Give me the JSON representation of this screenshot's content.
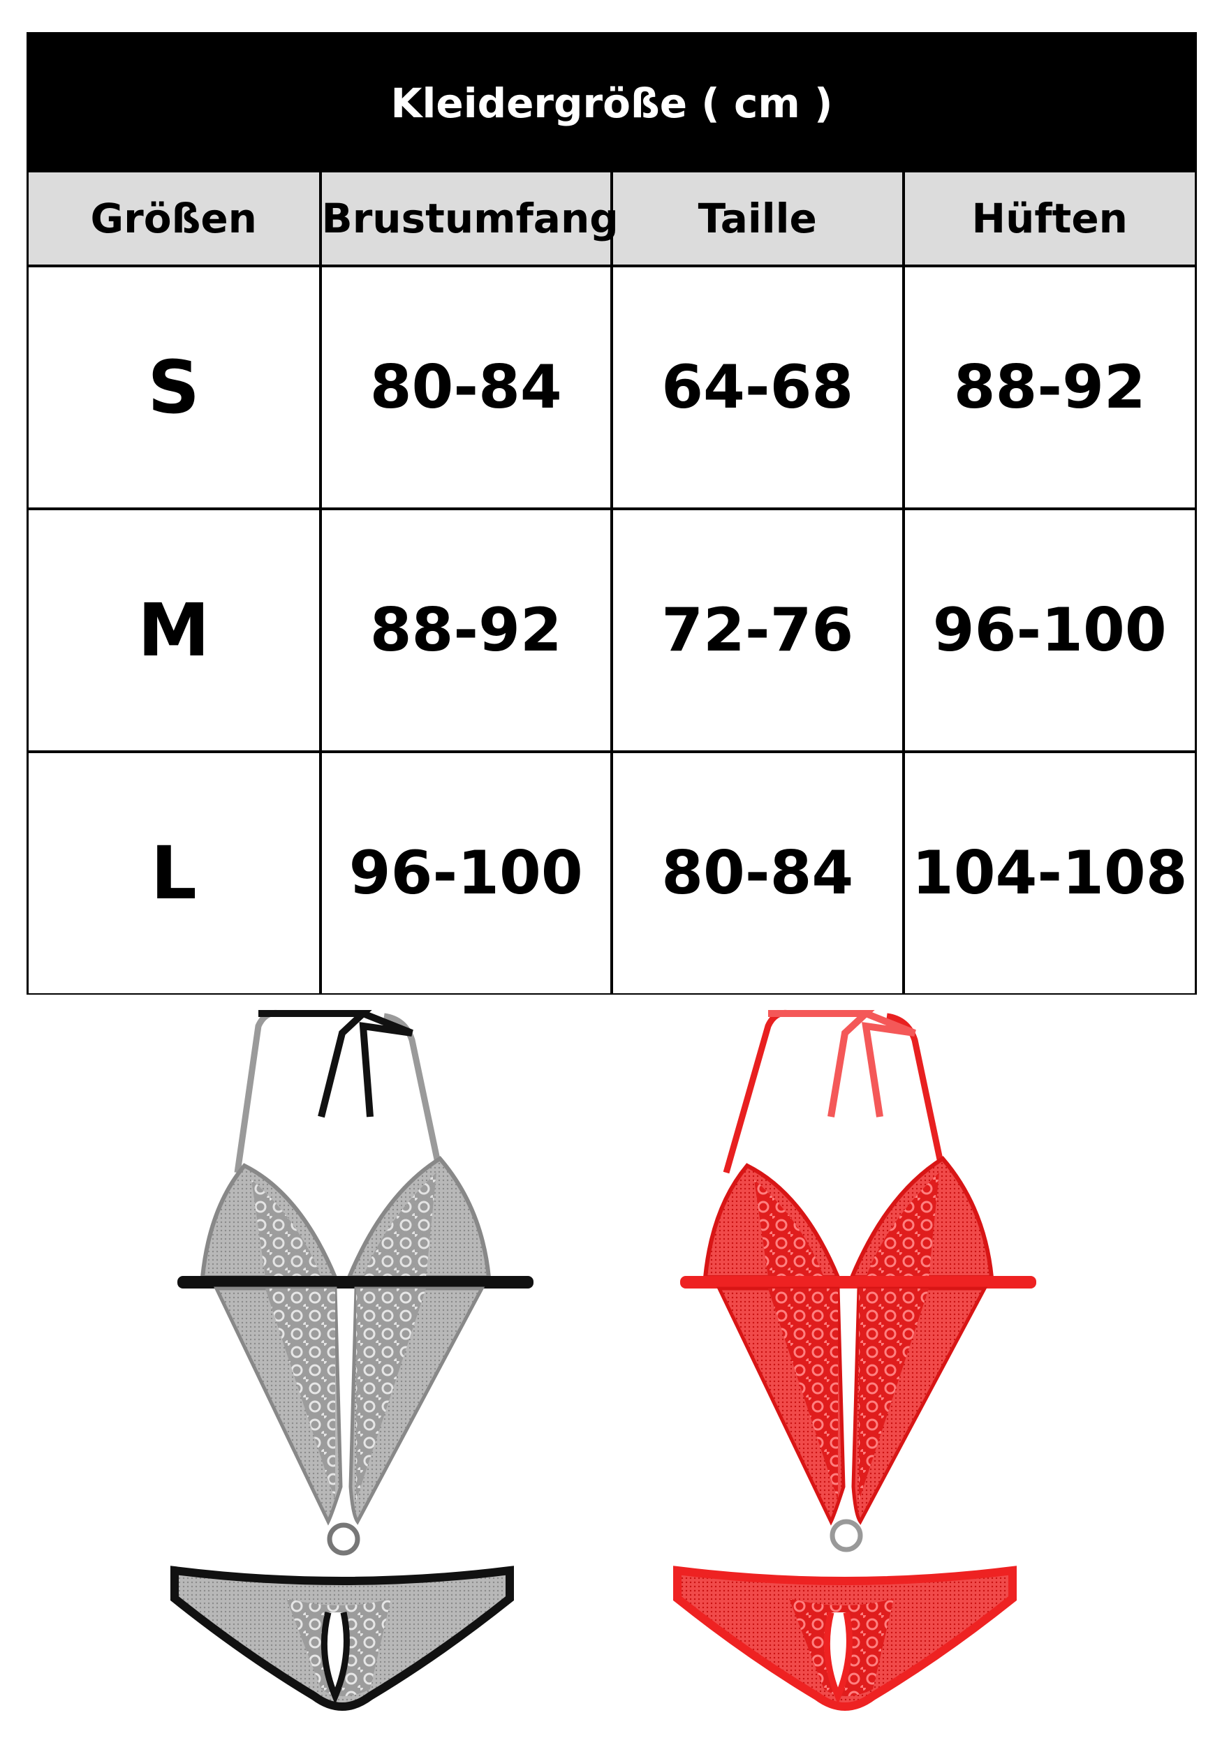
{
  "title": "Kleidergröße ( cm )",
  "columns": [
    "Größen",
    "Brustumfang",
    "Taille",
    "Hüften"
  ],
  "rows": [
    {
      "size": "S",
      "bust": "80-84",
      "waist": "64-68",
      "hip": "88-92"
    },
    {
      "size": "M",
      "bust": "88-92",
      "waist": "72-76",
      "hip": "96-100"
    },
    {
      "size": "L",
      "bust": "96-100",
      "waist": "80-84",
      "hip": "104-108"
    }
  ],
  "colors": {
    "title_bar": "#000000",
    "header_bg": "#dcdcdc",
    "product_black": "#1a1a1a",
    "product_red": "#ee2222"
  },
  "product_images": [
    {
      "name": "black-lace-bodysuit",
      "color": "black"
    },
    {
      "name": "red-lace-bodysuit",
      "color": "red"
    }
  ]
}
